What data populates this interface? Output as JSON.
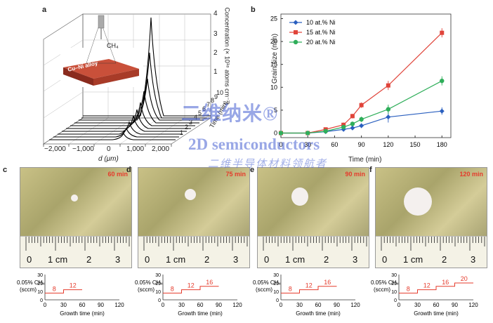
{
  "panel_a": {
    "letter": "a",
    "xlabel": "d (μm)",
    "x_ticks": [
      "−2,000",
      "−1,000",
      "0",
      "1,000",
      "2,000"
    ],
    "y_label": "Concentration (× 10¹⁸ atoms cm⁻³)",
    "y_ticks": [
      "1",
      "2",
      "3",
      "4"
    ],
    "time_label": "Time (min)",
    "time_ticks": [
      "1",
      "2",
      "3",
      "4",
      "5",
      "6",
      "7",
      "8",
      "9",
      "10"
    ],
    "inset_alloy_label": "Cu–Ni alloy",
    "inset_gas_label": "CH₄"
  },
  "panel_b": {
    "letter": "b",
    "xlabel": "Time (min)",
    "ylabel": "Grain size (mm)",
    "x_ticks": [
      "0",
      "30",
      "60",
      "90",
      "120",
      "150",
      "180"
    ],
    "y_ticks": [
      "0",
      "5",
      "10",
      "15",
      "20",
      "25"
    ]
  },
  "chart_data": {
    "type": "line",
    "xlabel": "Time (min)",
    "ylabel": "Grain size (mm)",
    "xlim": [
      0,
      190
    ],
    "ylim": [
      -1,
      26
    ],
    "legend_position": "top-left",
    "series": [
      {
        "name": "10 at.% Ni",
        "color": "#2a5fbf",
        "x": [
          0,
          30,
          50,
          70,
          80,
          90,
          120,
          180
        ],
        "y": [
          0,
          0,
          0.3,
          0.8,
          1.1,
          1.6,
          3.5,
          4.8
        ],
        "err": [
          0.1,
          0.1,
          0.2,
          0.3,
          0.4,
          0.5,
          1.2,
          0.8
        ]
      },
      {
        "name": "15 at.% Ni",
        "color": "#e0443a",
        "x": [
          0,
          30,
          50,
          70,
          80,
          90,
          120,
          180
        ],
        "y": [
          0,
          0,
          0.8,
          1.8,
          3.7,
          6.1,
          10.4,
          21.9
        ],
        "err": [
          0.1,
          0.1,
          0.3,
          0.5,
          0.5,
          0.6,
          1.0,
          1.0
        ]
      },
      {
        "name": "20 at.% Ni",
        "color": "#2fae5a",
        "x": [
          0,
          30,
          50,
          70,
          80,
          90,
          120,
          180
        ],
        "y": [
          0,
          0,
          0.4,
          1.3,
          2.0,
          3.0,
          5.2,
          11.4
        ],
        "err": [
          0.1,
          0.1,
          0.2,
          0.4,
          0.5,
          0.6,
          1.0,
          1.0
        ]
      }
    ]
  },
  "photos": [
    {
      "letter": "c",
      "time": "60 min"
    },
    {
      "letter": "d",
      "time": "75 min"
    },
    {
      "letter": "e",
      "time": "90 min"
    },
    {
      "letter": "f",
      "time": "120 min"
    }
  ],
  "ruler_labels": [
    "0",
    "1 cm",
    "2",
    "3"
  ],
  "flow_plots": {
    "ylabel_top": "0.05% CH₄",
    "ylabel_bottom": "(sccm)",
    "xlabel": "Growth time (min)",
    "x_ticks": [
      "0",
      "30",
      "60",
      "90",
      "120"
    ],
    "y_ticks": [
      "0",
      "10",
      "20",
      "30"
    ],
    "panels": [
      {
        "steps": [
          "8",
          "12"
        ]
      },
      {
        "steps": [
          "8",
          "12",
          "16"
        ]
      },
      {
        "steps": [
          "8",
          "12",
          "16"
        ]
      },
      {
        "steps": [
          "8",
          "12",
          "16",
          "20"
        ]
      }
    ]
  },
  "watermark": {
    "line1": "二维纳米®",
    "line2": "2D semiconductors",
    "line3": "二维半导体材料领航者"
  }
}
